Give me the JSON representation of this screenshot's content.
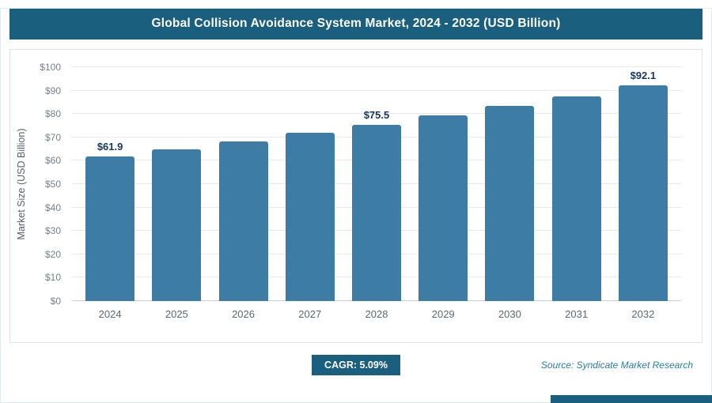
{
  "header": {
    "title": "Global Collision Avoidance System Market, 2024 - 2032 (USD Billion)"
  },
  "chart_data": {
    "type": "bar",
    "title": "Global Collision Avoidance System Market, 2024 - 2032 (USD Billion)",
    "categories": [
      "2024",
      "2025",
      "2026",
      "2027",
      "2028",
      "2029",
      "2030",
      "2031",
      "2032"
    ],
    "values": [
      61.9,
      65.0,
      68.4,
      71.8,
      75.5,
      79.3,
      83.4,
      87.6,
      92.1
    ],
    "bar_labels": [
      "$61.9",
      "",
      "",
      "",
      "$75.5",
      "",
      "",
      "",
      "$92.1"
    ],
    "xlabel": "",
    "ylabel": "Market Size (USD Billion)",
    "ylim": [
      0,
      100
    ],
    "yticks": [
      "$0",
      "$10",
      "$20",
      "$30",
      "$40",
      "$50",
      "$60",
      "$70",
      "$80",
      "$90",
      "$100"
    ],
    "grid": "horizontal",
    "legend": "none",
    "bar_color": "#3d7ca4"
  },
  "footer": {
    "cagr_label": "CAGR: 5.09%",
    "source": "Source: Syndicate Market Research"
  }
}
